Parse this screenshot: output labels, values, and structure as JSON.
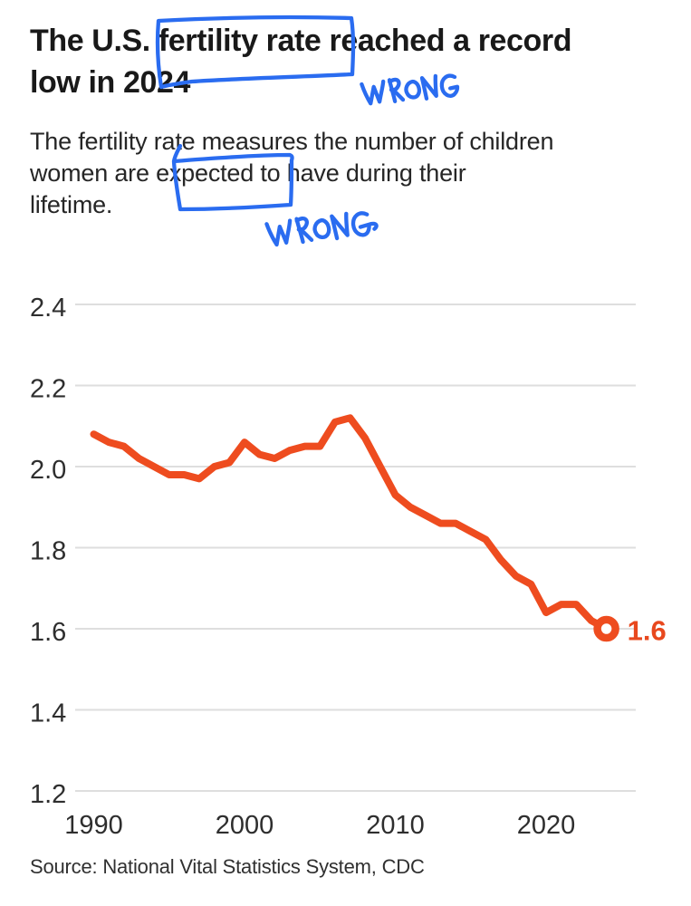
{
  "header": {
    "title_lines": [
      "The U.S. fertility rate reached a record",
      "low in 2024"
    ],
    "subtitle_lines": [
      "The fertility rate measures the number of children",
      "women are expected to have during their",
      "lifetime."
    ]
  },
  "chart_data": {
    "type": "line",
    "title": "The U.S. fertility rate reached a record low in 2024",
    "x": [
      1990,
      1991,
      1992,
      1993,
      1994,
      1995,
      1996,
      1997,
      1998,
      1999,
      2000,
      2001,
      2002,
      2003,
      2004,
      2005,
      2006,
      2007,
      2008,
      2009,
      2010,
      2011,
      2012,
      2013,
      2014,
      2015,
      2016,
      2017,
      2018,
      2019,
      2020,
      2021,
      2022,
      2023,
      2024
    ],
    "values": [
      2.08,
      2.06,
      2.05,
      2.02,
      2.0,
      1.98,
      1.98,
      1.97,
      2.0,
      2.01,
      2.06,
      2.03,
      2.02,
      2.04,
      2.05,
      2.05,
      2.11,
      2.12,
      2.07,
      2.0,
      1.93,
      1.9,
      1.88,
      1.86,
      1.86,
      1.84,
      1.82,
      1.77,
      1.73,
      1.71,
      1.64,
      1.66,
      1.66,
      1.62,
      1.6
    ],
    "yticks": [
      "2.4",
      "2.2",
      "2.0",
      "1.8",
      "1.6",
      "1.4",
      "1.2"
    ],
    "xticks": [
      "1990",
      "2000",
      "2010",
      "2020"
    ],
    "ylim": [
      1.2,
      2.45
    ],
    "end_label": "1.6",
    "grid": true,
    "legend": "none"
  },
  "annotations": {
    "wrong_labels": [
      "WRONG",
      "WRONG"
    ],
    "boxed_words": [
      "fertility rate",
      "expected"
    ],
    "ink_color": "#2a6cf0"
  },
  "source": {
    "text": "Source: National Vital Statistics System, CDC"
  },
  "colors": {
    "line": "#ee4c1f",
    "end_label": "#e8481e",
    "grid": "#dedede",
    "title_text": "#191919"
  }
}
